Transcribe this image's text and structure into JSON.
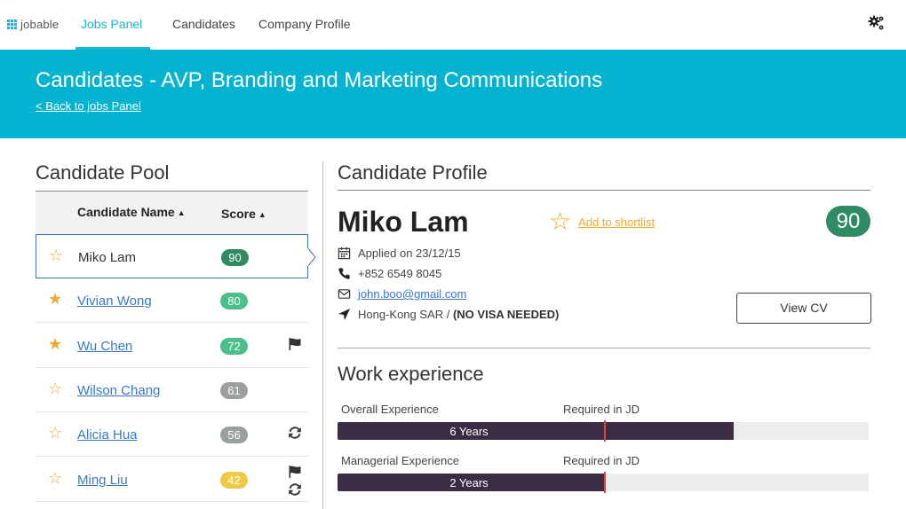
{
  "nav": {
    "logo_text": "jobable",
    "items": [
      {
        "label": "Jobs Panel",
        "active": true
      },
      {
        "label": "Candidates",
        "active": false
      },
      {
        "label": "Company Profile",
        "active": false
      }
    ],
    "settings_icon": "gears-icon",
    "accent_color": "#18b8cf"
  },
  "banner": {
    "title": "Candidates - AVP, Branding and Marketing Communications",
    "back_link": "< Back to jobs Panel",
    "background": "#03b3cf"
  },
  "pool": {
    "title": "Candidate Pool",
    "headers": {
      "name": "Candidate Name",
      "score": "Score"
    },
    "candidates": [
      {
        "name": "Miko Lam",
        "score": "90",
        "starred": false,
        "selected": true,
        "score_color": "#2f8b63",
        "icons": []
      },
      {
        "name": "Vivian Wong",
        "score": "80",
        "starred": true,
        "selected": false,
        "score_color": "#4cbf8a",
        "icons": []
      },
      {
        "name": "Wu Chen",
        "score": "72",
        "starred": true,
        "selected": false,
        "score_color": "#4cbf8a",
        "icons": [
          "flag-icon"
        ]
      },
      {
        "name": "Wilson Chang",
        "score": "61",
        "starred": false,
        "selected": false,
        "score_color": "#9aa09c",
        "icons": []
      },
      {
        "name": "Alicia Hua",
        "score": "56",
        "starred": false,
        "selected": false,
        "score_color": "#9aa09c",
        "icons": [
          "refresh-icon"
        ]
      },
      {
        "name": "Ming Liu",
        "score": "42",
        "starred": false,
        "selected": false,
        "score_color": "#f0c84a",
        "icons": [
          "flag-icon",
          "refresh-icon"
        ]
      }
    ]
  },
  "profile": {
    "title": "Candidate Profile",
    "name": "Miko Lam",
    "shortlist_label": "Add to shortlist",
    "score": "90",
    "applied": "Applied on 23/12/15",
    "phone": "+852 6549 8045",
    "email": "john.boo@gmail.com",
    "location": "Hong-Kong SAR /",
    "visa": "(NO VISA NEEDED)",
    "view_cv_label": "View CV"
  },
  "work": {
    "title": "Work experience",
    "required_label": "Required in JD",
    "items": [
      {
        "label": "Overall Experience",
        "value_text": "6 Years",
        "fill_fraction": 0.745,
        "required_fraction": 0.502
      },
      {
        "label": "Managerial Experience",
        "value_text": "2 Years",
        "fill_fraction": 0.502,
        "required_fraction": 0.502
      }
    ]
  }
}
